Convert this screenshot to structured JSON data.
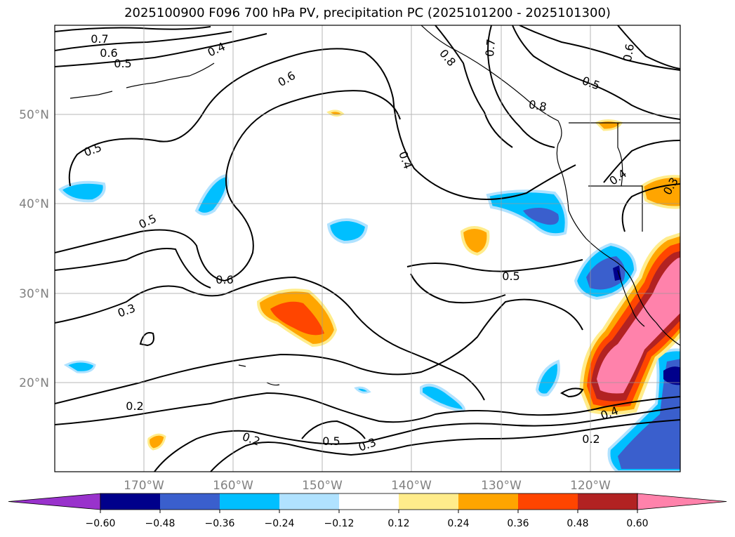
{
  "title": "2025100900 F096 700 hPa PV, precipitation PC (2025101200 - 2025101300)",
  "axes": {
    "lat_labels": [
      "50°N",
      "40°N",
      "30°N",
      "20°N"
    ],
    "lon_labels": [
      "170°W",
      "160°W",
      "150°W",
      "140°W",
      "130°W",
      "120°W"
    ],
    "grid": true
  },
  "contour_labels": [
    "0.7",
    "0.6",
    "0.5",
    "0.4",
    "0.6",
    "0.8",
    "0.7",
    "0.8",
    "0.6",
    "0.5",
    "0.5",
    "0.4",
    "0.5",
    "0.4",
    "0.3",
    "0.6",
    "0.5",
    "0.3",
    "0.2",
    "0.2",
    "0.5",
    "0.3",
    "0.4",
    "0.2"
  ],
  "colorbar": {
    "ticks": [
      "−0.60",
      "−0.48",
      "−0.36",
      "−0.24",
      "−0.12",
      "0.12",
      "0.24",
      "0.36",
      "0.48",
      "0.60"
    ],
    "colors": [
      "#9932cc",
      "#00008b",
      "#3a5fcd",
      "#00bfff",
      "#b0e2ff",
      "#ffffff",
      "#ffec8b",
      "#ffa500",
      "#ff4500",
      "#b22222",
      "#ff82ab"
    ]
  }
}
